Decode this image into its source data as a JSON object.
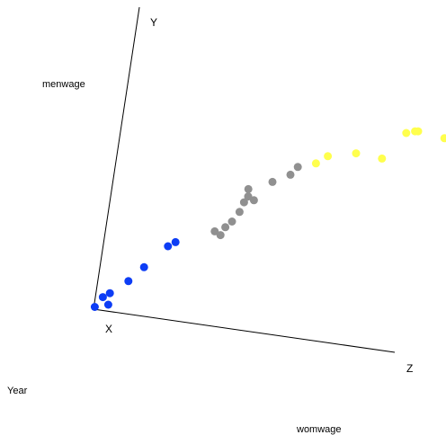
{
  "chart_data": {
    "type": "scatter3d",
    "axis_letters": {
      "x": "X",
      "y": "Y",
      "z": "Z"
    },
    "variable_labels": {
      "x": "Year",
      "y": "menwage",
      "z": "womwage"
    },
    "grid": false,
    "legend": "none",
    "colors": {
      "blue": "#0d3df5",
      "gray": "#909090",
      "yellow": "#ffff4d"
    },
    "points": [
      {
        "year": 0.02,
        "menwage": 0.01,
        "womwage": 0.0,
        "group": "blue"
      },
      {
        "year": 0.09,
        "menwage": 0.08,
        "womwage": 0.04,
        "group": "blue"
      },
      {
        "year": 0.06,
        "menwage": 0.06,
        "womwage": 0.02,
        "group": "blue"
      },
      {
        "year": 0.08,
        "menwage": 0.02,
        "womwage": 0.04,
        "group": "blue"
      },
      {
        "year": 0.18,
        "menwage": 0.14,
        "womwage": 0.09,
        "group": "blue"
      },
      {
        "year": 0.26,
        "menwage": 0.21,
        "womwage": 0.13,
        "group": "blue"
      },
      {
        "year": 0.34,
        "menwage": 0.32,
        "womwage": 0.2,
        "group": "blue"
      },
      {
        "year": 0.38,
        "menwage": 0.34,
        "womwage": 0.22,
        "group": "blue"
      },
      {
        "year": 0.48,
        "menwage": 0.4,
        "womwage": 0.35,
        "group": "gray"
      },
      {
        "year": 0.5,
        "menwage": 0.38,
        "womwage": 0.37,
        "group": "gray"
      },
      {
        "year": 0.53,
        "menwage": 0.42,
        "womwage": 0.38,
        "group": "gray"
      },
      {
        "year": 0.55,
        "menwage": 0.45,
        "womwage": 0.4,
        "group": "gray"
      },
      {
        "year": 0.58,
        "menwage": 0.5,
        "womwage": 0.42,
        "group": "gray"
      },
      {
        "year": 0.6,
        "menwage": 0.55,
        "womwage": 0.43,
        "group": "gray"
      },
      {
        "year": 0.62,
        "menwage": 0.58,
        "womwage": 0.44,
        "group": "gray"
      },
      {
        "year": 0.64,
        "menwage": 0.56,
        "womwage": 0.46,
        "group": "gray"
      },
      {
        "year": 0.61,
        "menwage": 0.62,
        "womwage": 0.44,
        "group": "gray"
      },
      {
        "year": 0.67,
        "menwage": 0.66,
        "womwage": 0.52,
        "group": "gray"
      },
      {
        "year": 0.71,
        "menwage": 0.7,
        "womwage": 0.58,
        "group": "gray"
      },
      {
        "year": 0.74,
        "menwage": 0.74,
        "womwage": 0.6,
        "group": "gray"
      },
      {
        "year": 0.79,
        "menwage": 0.76,
        "womwage": 0.66,
        "group": "yellow"
      },
      {
        "year": 0.81,
        "menwage": 0.8,
        "womwage": 0.7,
        "group": "yellow"
      },
      {
        "year": 0.86,
        "menwage": 0.82,
        "womwage": 0.8,
        "group": "yellow"
      },
      {
        "year": 0.88,
        "menwage": 0.8,
        "womwage": 0.9,
        "group": "yellow"
      },
      {
        "year": 0.91,
        "menwage": 0.94,
        "womwage": 0.98,
        "group": "yellow"
      },
      {
        "year": 0.93,
        "menwage": 0.95,
        "womwage": 1.01,
        "group": "yellow"
      },
      {
        "year": 0.94,
        "menwage": 0.95,
        "womwage": 1.02,
        "group": "yellow"
      },
      {
        "year": 0.97,
        "menwage": 0.92,
        "womwage": 1.12,
        "group": "yellow"
      },
      {
        "year": 1.0,
        "menwage": 1.0,
        "womwage": 1.16,
        "group": "yellow"
      }
    ]
  }
}
